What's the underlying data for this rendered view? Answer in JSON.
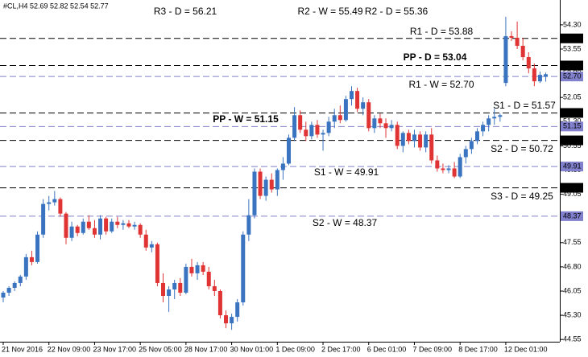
{
  "chart_data": {
    "type": "candlestick",
    "header": "#CL,H4 52.69 52.82 52.54 52.77",
    "up_color": "#3a74c0",
    "down_color": "#e03434",
    "ylim": [
      44.48,
      55.07
    ],
    "yticks": [
      {
        "value": 54.3,
        "label": "54.30"
      },
      {
        "value": 53.55,
        "label": "53.55"
      },
      {
        "value": 52.8,
        "label": "52.80"
      },
      {
        "value": 52.05,
        "label": "52.05"
      },
      {
        "value": 51.3,
        "label": "51.30"
      },
      {
        "value": 50.55,
        "label": "50.55"
      },
      {
        "value": 49.8,
        "label": "49.80"
      },
      {
        "value": 49.05,
        "label": "49.05"
      },
      {
        "value": 48.3,
        "label": "48.30"
      },
      {
        "value": 47.55,
        "label": "47.55"
      },
      {
        "value": 46.8,
        "label": "46.80"
      },
      {
        "value": 46.05,
        "label": "46.05"
      },
      {
        "value": 45.3,
        "label": "45.30"
      },
      {
        "value": 44.55,
        "label": "44.55"
      }
    ],
    "categories": [
      "21 Nov 2016",
      null,
      null,
      null,
      null,
      null,
      null,
      null,
      "22 Nov 09:00",
      null,
      null,
      null,
      null,
      null,
      null,
      null,
      "23 Nov 17:00",
      null,
      null,
      null,
      null,
      null,
      null,
      null,
      "25 Nov 05:00",
      null,
      null,
      null,
      null,
      null,
      null,
      null,
      "28 Nov 17:00",
      null,
      null,
      null,
      null,
      null,
      null,
      null,
      "30 Nov 01:00",
      null,
      null,
      null,
      null,
      null,
      null,
      null,
      "1 Dec 09:00",
      null,
      null,
      null,
      null,
      null,
      null,
      null,
      "2 Dec 17:00",
      null,
      null,
      null,
      null,
      null,
      null,
      null,
      "6 Dec 01:00",
      null,
      null,
      null,
      null,
      null,
      null,
      null,
      "7 Dec 09:00",
      null,
      null,
      null,
      null,
      null,
      null,
      null,
      "8 Dec 17:00",
      null,
      null,
      null,
      null,
      null,
      null,
      null,
      "12 Dec 01:00",
      null,
      null,
      null,
      null,
      null,
      null,
      null
    ],
    "open": [
      45.85,
      46.0,
      46.15,
      46.3,
      46.5,
      47.1,
      46.95,
      47.8,
      48.75,
      48.8,
      48.9,
      48.45,
      47.7,
      48.05,
      47.85,
      48.2,
      48.0,
      47.8,
      48.3,
      47.9,
      48.2,
      48.1,
      48.15,
      48.05,
      48.1,
      47.8,
      47.4,
      47.5,
      46.3,
      45.9,
      46.1,
      46.3,
      46.0,
      46.8,
      46.6,
      46.85,
      46.65,
      46.2,
      46.05,
      45.3,
      45.05,
      45.25,
      45.7,
      47.8,
      48.4,
      49.75,
      49.0,
      49.5,
      49.2,
      49.8,
      50.0,
      50.8,
      51.5,
      51.05,
      50.85,
      51.2,
      50.9,
      50.95,
      51.3,
      51.5,
      51.35,
      52.0,
      52.25,
      51.7,
      51.9,
      51.1,
      51.4,
      51.25,
      51.1,
      51.2,
      50.55,
      50.95,
      50.7,
      50.9,
      50.5,
      50.9,
      50.1,
      49.85,
      49.8,
      49.85,
      49.6,
      50.2,
      50.45,
      50.7,
      51.0,
      51.2,
      51.4,
      51.45,
      52.5,
      53.95,
      53.9,
      53.65,
      53.3,
      52.95,
      52.55,
      52.69
    ],
    "high": [
      46.05,
      46.2,
      46.35,
      46.55,
      47.2,
      47.3,
      47.9,
      48.9,
      49.0,
      49.15,
      48.95,
      48.5,
      48.2,
      48.1,
      48.3,
      48.4,
      48.25,
      48.4,
      48.35,
      48.3,
      48.35,
      48.25,
      48.25,
      48.2,
      48.15,
      47.95,
      47.6,
      47.55,
      46.6,
      46.2,
      46.4,
      46.45,
      46.9,
      47.05,
      46.95,
      46.95,
      46.8,
      46.4,
      46.1,
      45.45,
      45.35,
      45.8,
      47.9,
      48.9,
      49.85,
      49.85,
      49.6,
      49.7,
      49.85,
      50.2,
      50.9,
      51.75,
      51.65,
      51.3,
      51.3,
      51.35,
      51.05,
      51.45,
      51.7,
      51.8,
      52.1,
      52.4,
      52.35,
      52.05,
      52.0,
      51.5,
      51.55,
      51.4,
      51.35,
      51.3,
      51.0,
      51.05,
      51.05,
      51.0,
      51.0,
      51.1,
      50.25,
      50.0,
      49.95,
      50.05,
      50.3,
      50.55,
      50.8,
      51.1,
      51.3,
      51.5,
      51.7,
      51.55,
      54.55,
      54.1,
      54.4,
      53.9,
      53.45,
      53.1,
      52.85,
      52.82
    ],
    "low": [
      45.7,
      45.9,
      46.05,
      46.2,
      46.4,
      46.85,
      46.9,
      47.7,
      48.55,
      48.7,
      48.35,
      47.5,
      47.6,
      47.75,
      47.8,
      47.95,
      47.7,
      47.65,
      47.8,
      47.85,
      48.0,
      47.95,
      48.0,
      47.95,
      47.7,
      47.3,
      47.25,
      46.2,
      45.7,
      45.4,
      45.8,
      45.9,
      45.95,
      46.5,
      46.4,
      46.55,
      46.1,
      45.9,
      45.2,
      44.9,
      44.85,
      45.1,
      45.6,
      47.6,
      48.3,
      48.9,
      48.85,
      49.1,
      49.0,
      49.5,
      49.95,
      50.7,
      50.95,
      50.7,
      50.75,
      50.8,
      50.4,
      50.85,
      51.1,
      51.25,
      51.3,
      51.8,
      51.6,
      51.5,
      51.0,
      50.95,
      51.1,
      50.8,
      51.0,
      50.45,
      50.35,
      50.6,
      50.5,
      50.4,
      50.35,
      50.0,
      49.75,
      49.7,
      49.7,
      49.55,
      49.55,
      50.0,
      50.3,
      50.6,
      50.85,
      51.0,
      51.2,
      51.3,
      52.4,
      53.8,
      53.55,
      53.2,
      52.8,
      52.4,
      52.5,
      52.54
    ],
    "close": [
      46.0,
      46.15,
      46.3,
      46.5,
      47.1,
      46.95,
      47.8,
      48.75,
      48.8,
      48.9,
      48.45,
      47.7,
      48.05,
      47.85,
      48.2,
      48.0,
      47.8,
      48.3,
      47.9,
      48.2,
      48.1,
      48.15,
      48.05,
      48.1,
      47.8,
      47.4,
      47.5,
      46.3,
      45.9,
      46.1,
      46.3,
      46.0,
      46.8,
      46.6,
      46.85,
      46.65,
      46.2,
      46.05,
      45.3,
      45.05,
      45.25,
      45.7,
      47.8,
      48.4,
      49.75,
      49.0,
      49.5,
      49.2,
      49.8,
      50.0,
      50.8,
      51.5,
      51.05,
      50.85,
      51.2,
      50.9,
      50.95,
      51.3,
      51.5,
      51.35,
      52.0,
      52.25,
      51.7,
      51.9,
      51.1,
      51.4,
      51.25,
      51.1,
      51.2,
      50.55,
      50.95,
      50.7,
      50.9,
      50.5,
      50.9,
      50.1,
      49.85,
      49.8,
      49.85,
      49.6,
      50.2,
      50.45,
      50.7,
      51.0,
      51.2,
      51.4,
      51.45,
      51.5,
      53.95,
      53.9,
      53.65,
      53.3,
      52.95,
      52.55,
      52.75,
      52.77
    ],
    "levels": [
      {
        "label": "R3 - D = 56.21",
        "value": 56.21,
        "color": "#e03434",
        "line_color": "#000000"
      },
      {
        "label": "R2 - W = 55.49",
        "value": 55.49,
        "color": "#8080cc",
        "line_color": "#8080cc"
      },
      {
        "label": "R2 - D = 55.36",
        "value": 55.36,
        "color": "#e03434",
        "line_color": "#000000"
      },
      {
        "label": "R1 - D = 53.88",
        "value": 53.88,
        "color": "#e03434",
        "line_color": "#000000",
        "box_label": "53.88"
      },
      {
        "label": "PP - D = 53.04",
        "value": 53.04,
        "color": "#3355cc",
        "line_color": "#000000",
        "box_label": "53.04",
        "bold": true
      },
      {
        "label": "R1 - W = 52.70",
        "value": 52.7,
        "color": "#8080cc",
        "line_color": "#8080cc",
        "box_label": "52.70"
      },
      {
        "label": "S1 - D = 51.57",
        "value": 51.57,
        "color": "#e03434",
        "line_color": "#000000",
        "box_label": "51.57"
      },
      {
        "label": "PP - W = 51.15",
        "value": 51.15,
        "color": "#5555cc",
        "line_color": "#8080cc",
        "box_label": "51.15",
        "bold": true
      },
      {
        "label": "S2 - D = 50.72",
        "value": 50.72,
        "color": "#e03434",
        "line_color": "#000000",
        "box_label": "50.72"
      },
      {
        "label": "S1 - W = 49.91",
        "value": 49.91,
        "color": "#8080cc",
        "line_color": "#8080cc",
        "box_label": "49.91"
      },
      {
        "label": "S3 - D = 49.25",
        "value": 49.25,
        "color": "#e03434",
        "line_color": "#000000",
        "box_label": "49.25"
      },
      {
        "label": "S2 - W = 48.37",
        "value": 48.37,
        "color": "#8080cc",
        "line_color": "#8080cc",
        "box_label": "48.37"
      }
    ]
  }
}
